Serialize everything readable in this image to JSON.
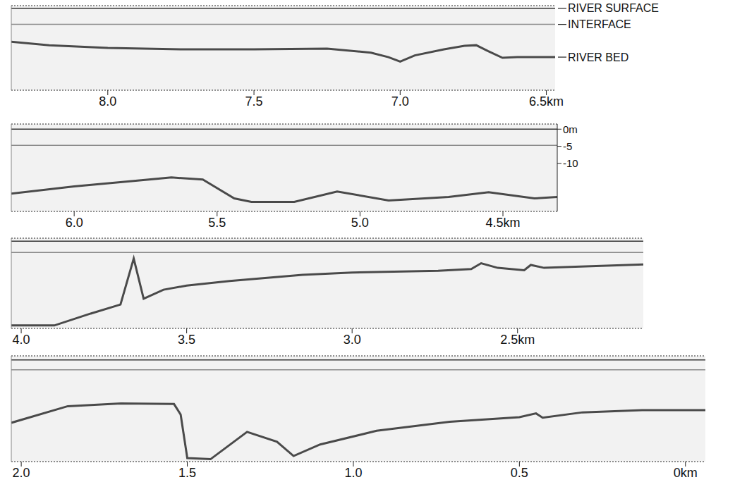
{
  "chart_data": [
    {
      "type": "line",
      "x": [
        8.33,
        8.2,
        8.0,
        7.75,
        7.5,
        7.25,
        7.1,
        7.04,
        7.0,
        6.95,
        6.85,
        6.78,
        6.74,
        6.7,
        6.65,
        6.6,
        6.47
      ],
      "series": [
        {
          "name": "RIVER SURFACE",
          "color": "#333333",
          "values": [
            0,
            0,
            0,
            0,
            0,
            0,
            0,
            0,
            0,
            0,
            0,
            0,
            0,
            0,
            0,
            0,
            0
          ]
        },
        {
          "name": "INTERFACE",
          "color": "#8a8a8a",
          "values": [
            -4.7,
            -4.7,
            -4.7,
            -4.7,
            -4.7,
            -4.7,
            -4.7,
            -4.7,
            -4.7,
            -4.7,
            -4.7,
            -4.7,
            -4.7,
            -4.7,
            -4.7,
            -4.7,
            -4.7
          ]
        },
        {
          "name": "RIVER BED",
          "color": "#4a4a4a",
          "values": [
            -9.8,
            -10.8,
            -11.6,
            -12.0,
            -12.0,
            -11.8,
            -13.0,
            -14.3,
            -15.6,
            -13.8,
            -12.0,
            -11.0,
            -10.8,
            -12.5,
            -14.5,
            -14.3,
            -14.3
          ]
        }
      ],
      "xlim": [
        8.33,
        6.47
      ],
      "ylim": [
        -24,
        0.8
      ],
      "xticks": [
        {
          "value": 8,
          "label": "8.0"
        },
        7.5,
        {
          "value": 7,
          "label": "7.0"
        },
        {
          "value": 6.5,
          "label": "6.5km"
        }
      ],
      "tick_labels": "x",
      "grid": false
    },
    {
      "type": "line",
      "x": [
        6.22,
        6.0,
        5.66,
        5.55,
        5.44,
        5.38,
        5.23,
        5.08,
        4.9,
        4.69,
        4.55,
        4.39,
        4.31
      ],
      "series": [
        {
          "color": "#333333",
          "values": [
            0,
            0,
            0,
            0,
            0,
            0,
            0,
            0,
            0,
            0,
            0,
            0,
            0
          ]
        },
        {
          "color": "#8a8a8a",
          "values": [
            -4.7,
            -4.7,
            -4.7,
            -4.7,
            -4.7,
            -4.7,
            -4.7,
            -4.7,
            -4.7,
            -4.7,
            -4.7,
            -4.7,
            -4.7
          ]
        },
        {
          "color": "#4a4a4a",
          "values": [
            -18.8,
            -16.7,
            -14.1,
            -14.7,
            -20.2,
            -21.2,
            -21.2,
            -18.2,
            -20.8,
            -19.8,
            -18.4,
            -20.2,
            -19.8
          ]
        }
      ],
      "xlim": [
        6.22,
        4.31
      ],
      "ylim": [
        -24,
        1.5
      ],
      "xticks": [
        {
          "value": 6,
          "label": "6.0"
        },
        5.5,
        {
          "value": 5,
          "label": "5.0"
        },
        {
          "value": 4.5,
          "label": "4.5km"
        }
      ],
      "yticks": [
        {
          "value": 0,
          "label": "0m"
        },
        -5,
        -10
      ],
      "grid": false
    },
    {
      "type": "line",
      "x": [
        4.03,
        3.9,
        3.79,
        3.7,
        3.66,
        3.63,
        3.57,
        3.5,
        3.37,
        3.15,
        3.0,
        2.74,
        2.64,
        2.61,
        2.56,
        2.48,
        2.46,
        2.42,
        2.12
      ],
      "series": [
        {
          "color": "#333333",
          "values": [
            0,
            0,
            0,
            0,
            0,
            0,
            0,
            0,
            0,
            0,
            0,
            0,
            0,
            0,
            0,
            0,
            0,
            0,
            0
          ]
        },
        {
          "color": "#8a8a8a",
          "values": [
            -3.9,
            -3.9,
            -3.9,
            -3.9,
            -3.9,
            -3.9,
            -3.9,
            -3.9,
            -3.9,
            -3.9,
            -3.9,
            -3.9,
            -3.9,
            -3.9,
            -3.9,
            -3.9,
            -3.9,
            -3.9,
            -3.9
          ]
        },
        {
          "color": "#4a4a4a",
          "values": [
            -29,
            -29,
            -24.9,
            -21.8,
            -6,
            -19.8,
            -16.7,
            -15.3,
            -13.7,
            -11.6,
            -10.8,
            -10.2,
            -9.6,
            -7.6,
            -9.2,
            -10.0,
            -8.2,
            -9.2,
            -8.0
          ]
        }
      ],
      "xlim": [
        4.03,
        2.12
      ],
      "ylim": [
        -30,
        1
      ],
      "xticks": [
        {
          "value": 4,
          "label": "4.0"
        },
        3.5,
        {
          "value": 3,
          "label": "3.0"
        },
        {
          "value": 2.5,
          "label": "2.5km"
        }
      ],
      "tick_labels": "x",
      "grid": false
    },
    {
      "type": "line",
      "x": [
        2.03,
        1.86,
        1.7,
        1.54,
        1.52,
        1.5,
        1.43,
        1.32,
        1.23,
        1.18,
        1.1,
        0.93,
        0.71,
        0.5,
        0.45,
        0.43,
        0.31,
        0.13,
        -0.06
      ],
      "series": [
        {
          "color": "#333333",
          "values": [
            0,
            0,
            0,
            0,
            0,
            0,
            0,
            0,
            0,
            0,
            0,
            0,
            0,
            0,
            0,
            0,
            0,
            0,
            0
          ]
        },
        {
          "color": "#8a8a8a",
          "values": [
            -3.7,
            -3.7,
            -3.7,
            -3.7,
            -3.7,
            -3.7,
            -3.7,
            -3.7,
            -3.7,
            -3.7,
            -3.7,
            -3.7,
            -3.7,
            -3.7,
            -3.7,
            -3.7,
            -3.7,
            -3.7,
            -3.7
          ]
        },
        {
          "color": "#4a4a4a",
          "values": [
            -23.5,
            -17.3,
            -16.3,
            -16.5,
            -20.4,
            -36.7,
            -37.1,
            -26.9,
            -30.6,
            -35.9,
            -31.6,
            -26.5,
            -23.1,
            -21.4,
            -20.0,
            -21.6,
            -19.6,
            -18.8,
            -18.8
          ]
        }
      ],
      "xlim": [
        2.03,
        -0.06
      ],
      "ylim": [
        -38,
        1.5
      ],
      "xticks": [
        {
          "value": 2,
          "label": "2.0"
        },
        1.5,
        {
          "value": 1,
          "label": "1.0"
        },
        0.5,
        {
          "value": 0,
          "label": "0km"
        }
      ],
      "tick_labels": "x",
      "grid": false
    }
  ]
}
